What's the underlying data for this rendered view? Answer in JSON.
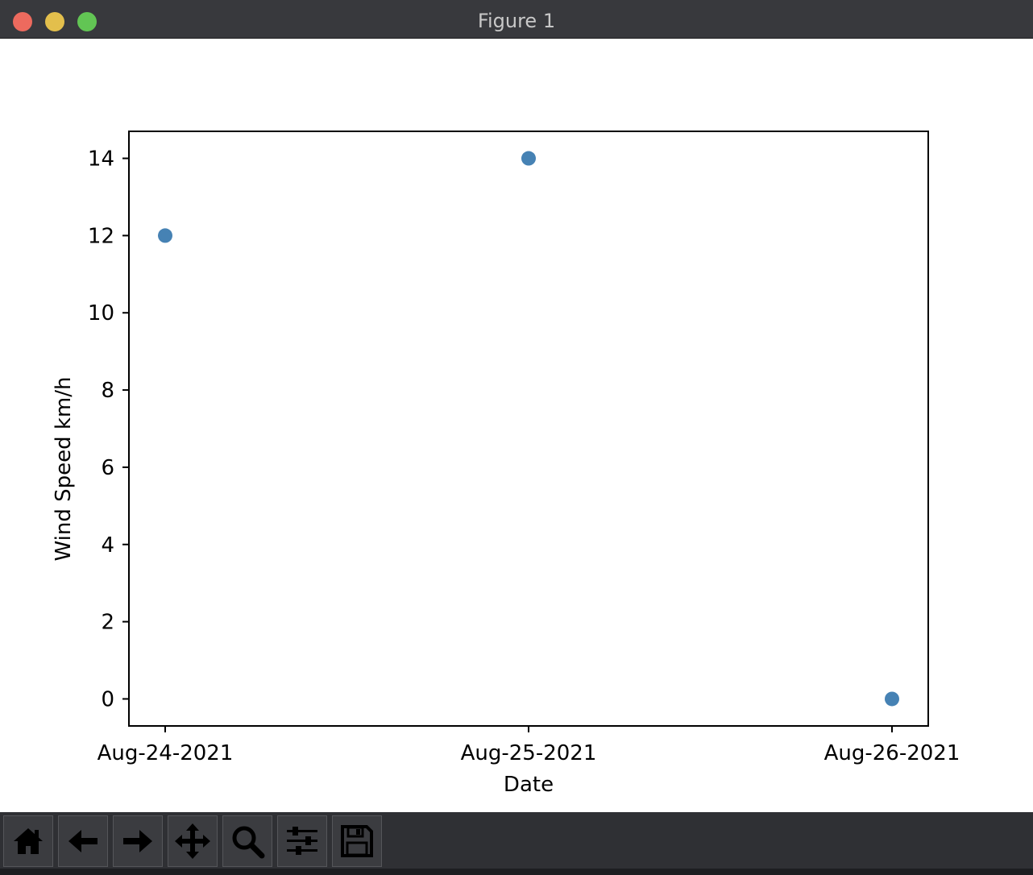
{
  "window": {
    "title": "Figure 1"
  },
  "toolbar": {
    "buttons": [
      {
        "name": "home-button",
        "icon": "home-icon"
      },
      {
        "name": "back-button",
        "icon": "arrow-left-icon"
      },
      {
        "name": "forward-button",
        "icon": "arrow-right-icon"
      },
      {
        "name": "pan-button",
        "icon": "move-icon"
      },
      {
        "name": "zoom-button",
        "icon": "magnifier-icon"
      },
      {
        "name": "configure-subplots-button",
        "icon": "sliders-icon"
      },
      {
        "name": "save-button",
        "icon": "floppy-disk-icon"
      }
    ]
  },
  "colors": {
    "marker": "#4682b4"
  },
  "chart_data": {
    "type": "scatter",
    "title": "",
    "xlabel": "Date",
    "ylabel": "Wind Speed km/h",
    "categories": [
      "Aug-24-2021",
      "Aug-25-2021",
      "Aug-26-2021"
    ],
    "values": [
      12,
      14,
      0
    ],
    "yticks": [
      "0",
      "2",
      "4",
      "6",
      "8",
      "10",
      "12",
      "14"
    ],
    "ylim": [
      -0.7,
      14.7
    ],
    "grid": false
  }
}
